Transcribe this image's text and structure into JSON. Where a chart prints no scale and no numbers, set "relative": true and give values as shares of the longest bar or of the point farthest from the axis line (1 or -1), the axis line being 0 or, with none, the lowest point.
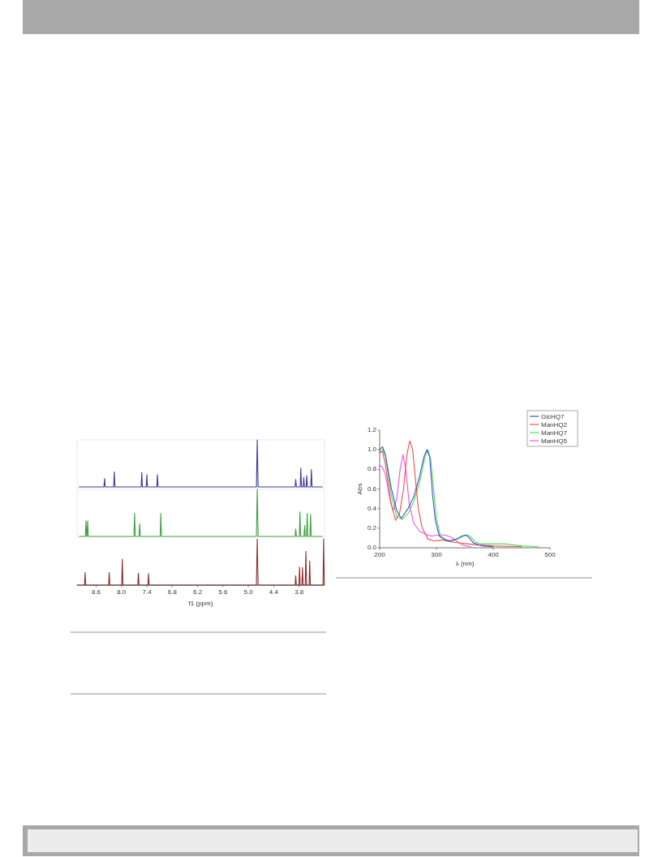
{
  "chart_data": [
    {
      "type": "line",
      "relative": true,
      "xlim": [
        9.05,
        3.2
      ],
      "series": [
        {
          "color": "#3a3a9e",
          "x": [
            9.0,
            8.415,
            8.4,
            8.385,
            8.185,
            8.17,
            8.155,
            7.535,
            7.52,
            7.505,
            7.415,
            7.4,
            7.385,
            7.165,
            7.15,
            7.135,
            4.81,
            4.79,
            4.77,
            3.895,
            3.88,
            3.865,
            3.775,
            3.76,
            3.745,
            3.705,
            3.69,
            3.675,
            3.635,
            3.62,
            3.605,
            3.525,
            3.51,
            3.495,
            3.25
          ],
          "values": [
            0,
            0,
            0.18,
            0,
            0,
            0.32,
            0,
            0,
            0.31,
            0,
            0,
            0.26,
            0,
            0,
            0.26,
            0,
            0,
            1,
            0,
            0,
            0.16,
            0,
            0,
            0.4,
            0,
            0,
            0.2,
            0,
            0,
            0.24,
            0,
            0,
            0.37,
            0,
            0
          ]
        }
      ]
    },
    {
      "type": "line",
      "relative": true,
      "xlim": [
        9.05,
        3.2
      ],
      "series": [
        {
          "color": "#3f9e3f",
          "x": [
            9.0,
            8.855,
            8.84,
            8.825,
            8.815,
            8.8,
            8.785,
            7.705,
            7.69,
            7.675,
            7.585,
            7.57,
            7.555,
            7.085,
            7.07,
            7.055,
            4.81,
            4.79,
            4.77,
            3.895,
            3.88,
            3.865,
            3.795,
            3.78,
            3.765,
            3.685,
            3.67,
            3.655,
            3.625,
            3.61,
            3.595,
            3.545,
            3.53,
            3.515,
            3.25
          ],
          "values": [
            0,
            0,
            0.33,
            0,
            0,
            0.33,
            0,
            0,
            0.49,
            0,
            0,
            0.27,
            0,
            0,
            0.49,
            0,
            0,
            1,
            0,
            0,
            0.16,
            0,
            0,
            0.52,
            0,
            0,
            0.23,
            0,
            0,
            0.49,
            0,
            0,
            0.47,
            0,
            0
          ]
        }
      ]
    },
    {
      "type": "line",
      "relative": true,
      "xlim": [
        9.05,
        3.2
      ],
      "xlabel": "f1 (ppm)",
      "xticks": [
        8.6,
        {
          "value": 8,
          "label": "8.0"
        },
        7.4,
        6.8,
        6.2,
        5.6,
        {
          "value": 5,
          "label": "5.0"
        },
        4.4,
        3.8
      ],
      "series": [
        {
          "color": "#8b2c2c",
          "x": [
            9.05,
            8.875,
            8.86,
            8.845,
            8.305,
            8.29,
            8.275,
            7.995,
            7.98,
            7.965,
            7.615,
            7.6,
            7.585,
            7.375,
            7.36,
            7.345,
            4.81,
            4.79,
            4.77,
            3.895,
            3.88,
            3.865,
            3.805,
            3.79,
            3.775,
            3.735,
            3.72,
            3.705,
            3.655,
            3.64,
            3.625,
            3.565,
            3.55,
            3.535,
            3.235,
            3.22,
            3.205
          ],
          "values": [
            0,
            0,
            0.27,
            0,
            0,
            0.27,
            0,
            0,
            0.56,
            0,
            0,
            0.26,
            0,
            0,
            0.25,
            0,
            0,
            1,
            0,
            0,
            0.2,
            0,
            0,
            0.39,
            0,
            0,
            0.38,
            0,
            0,
            0.73,
            0,
            0,
            0.52,
            0,
            0,
            1,
            0
          ]
        }
      ]
    },
    {
      "type": "line",
      "xlim": [
        200,
        500
      ],
      "xticks": [
        200,
        300,
        400,
        500
      ],
      "ylim": [
        0,
        1.2
      ],
      "yticks": [
        {
          "value": 0,
          "label": "0.0"
        },
        0.2,
        0.4,
        0.6,
        0.8,
        {
          "value": 1,
          "label": "1.0"
        },
        1.2
      ],
      "xlabel": "λ (nm)",
      "ylabel": "Abs",
      "legend": "top right",
      "series": [
        {
          "name": "GlcHQ7",
          "color": "#3b4fd0",
          "x": [
            200,
            205,
            210,
            220,
            230,
            238,
            250,
            260,
            270,
            278,
            283,
            288,
            293,
            298,
            305,
            315,
            325,
            335,
            345,
            352,
            358,
            365,
            380,
            400
          ],
          "values": [
            1.0,
            1.03,
            0.95,
            0.62,
            0.38,
            0.3,
            0.4,
            0.52,
            0.72,
            0.93,
            1.0,
            0.93,
            0.55,
            0.28,
            0.12,
            0.08,
            0.07,
            0.09,
            0.12,
            0.13,
            0.1,
            0.05,
            0.02,
            0.01
          ]
        },
        {
          "name": "ManHQ2",
          "color": "#f0504a",
          "x": [
            200,
            205,
            210,
            220,
            228,
            235,
            242,
            248,
            253,
            258,
            263,
            268,
            275,
            285,
            295,
            310,
            325,
            340,
            355,
            370,
            400,
            450
          ],
          "values": [
            0.97,
            0.98,
            0.85,
            0.45,
            0.28,
            0.35,
            0.6,
            0.95,
            1.09,
            1.0,
            0.7,
            0.4,
            0.2,
            0.09,
            0.07,
            0.08,
            0.06,
            0.05,
            0.04,
            0.03,
            0.02,
            0.01
          ]
        },
        {
          "name": "ManHQ7",
          "color": "#4fe04f",
          "x": [
            200,
            205,
            210,
            220,
            230,
            240,
            250,
            260,
            270,
            280,
            285,
            290,
            295,
            300,
            307,
            318,
            328,
            338,
            348,
            355,
            361,
            368,
            378,
            400,
            420,
            450,
            480
          ],
          "values": [
            0.97,
            1.0,
            0.94,
            0.55,
            0.32,
            0.29,
            0.35,
            0.47,
            0.66,
            0.93,
            1.0,
            0.9,
            0.6,
            0.3,
            0.12,
            0.08,
            0.07,
            0.09,
            0.12,
            0.13,
            0.11,
            0.06,
            0.04,
            0.04,
            0.04,
            0.02,
            0.01
          ]
        },
        {
          "name": "ManHQ5",
          "color": "#f050f0",
          "x": [
            200,
            205,
            210,
            218,
            224,
            230,
            236,
            241,
            246,
            252,
            260,
            270,
            280,
            290,
            305,
            315,
            325,
            335,
            345,
            360
          ],
          "values": [
            0.84,
            0.82,
            0.75,
            0.5,
            0.38,
            0.5,
            0.8,
            0.95,
            0.8,
            0.45,
            0.25,
            0.17,
            0.14,
            0.12,
            0.13,
            0.13,
            0.11,
            0.07,
            0.03,
            0.01
          ]
        }
      ]
    }
  ]
}
